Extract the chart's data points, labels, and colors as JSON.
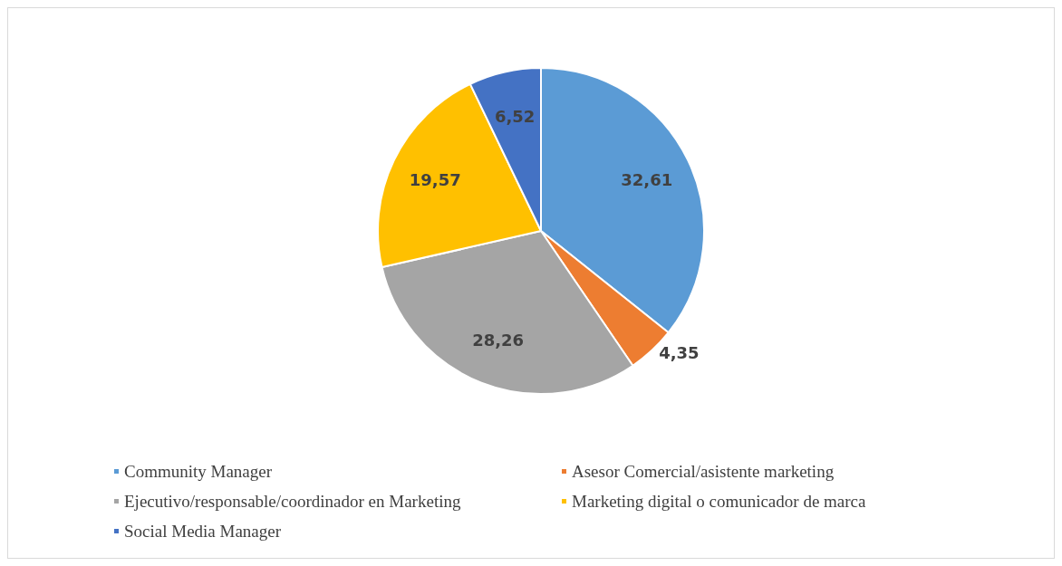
{
  "chart_data": {
    "type": "pie",
    "categories": [
      "Community Manager",
      "Asesor Comercial/asistente marketing",
      "Ejecutivo/responsable/coordinador en Marketing",
      "Marketing digital o comunicador de marca",
      "Social Media Manager"
    ],
    "values": [
      32.61,
      4.35,
      28.26,
      19.57,
      6.52
    ],
    "value_labels": [
      "32,61",
      "4,35",
      "28,26",
      "19,57",
      "6,52"
    ],
    "colors": [
      "#5b9bd5",
      "#ed7d31",
      "#a5a5a5",
      "#ffc000",
      "#4472c4"
    ],
    "legend": "bottom"
  }
}
